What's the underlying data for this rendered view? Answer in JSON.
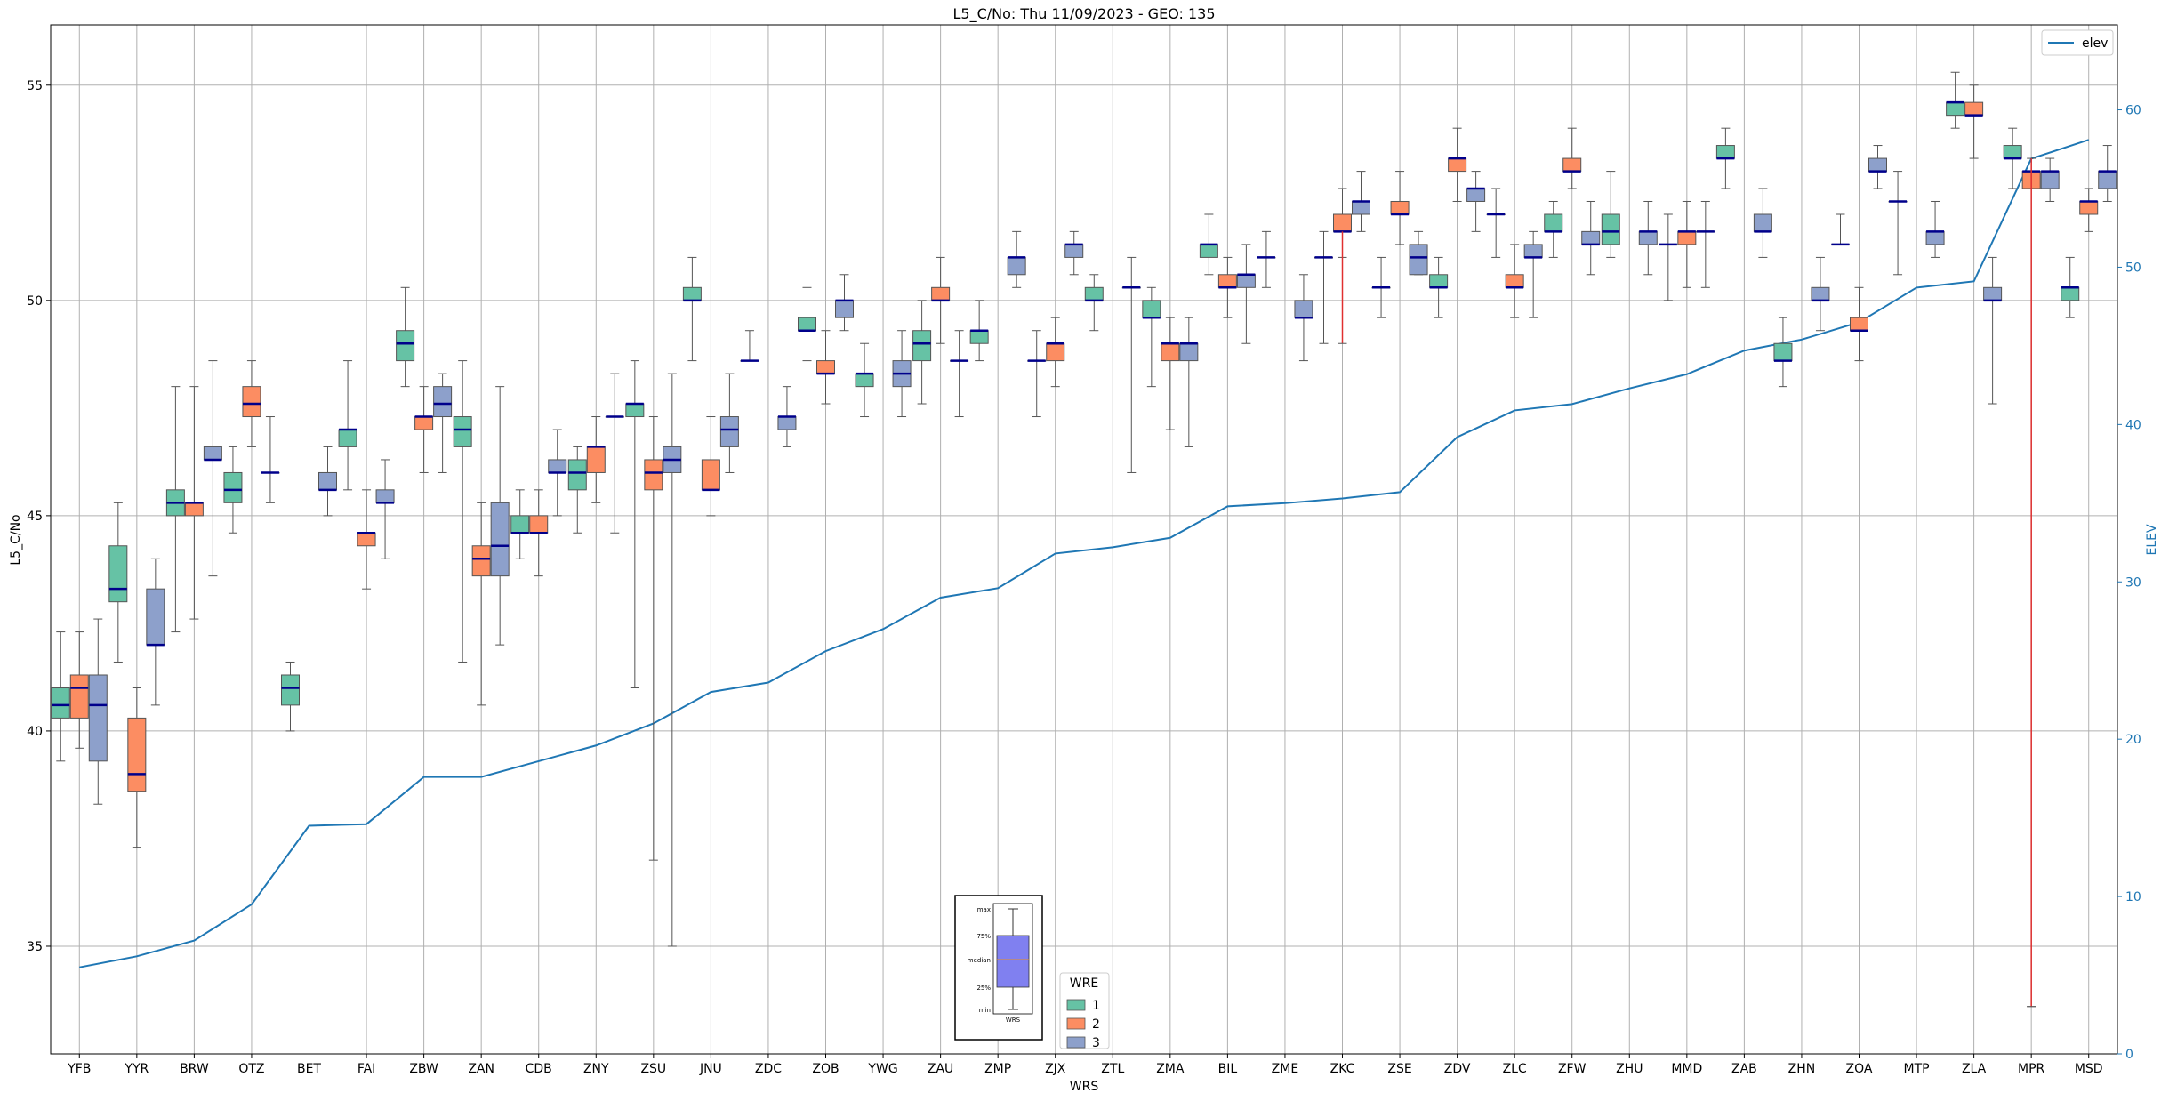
{
  "chart_data": {
    "type": "box",
    "title": "L5_C/No: Thu 11/09/2023 - GEO: 135",
    "xlabel": "WRS",
    "ylabel": "L5_C/No",
    "y2label": "ELEV",
    "ylim": [
      32.5,
      56.4
    ],
    "y2lim": [
      0,
      65.4
    ],
    "yticks": [
      35,
      40,
      45,
      50,
      55
    ],
    "y2ticks": [
      0,
      10,
      20,
      30,
      40,
      50,
      60
    ],
    "grid": true,
    "categories": [
      "YFB",
      "YYR",
      "BRW",
      "OTZ",
      "BET",
      "FAI",
      "ZBW",
      "ZAN",
      "CDB",
      "ZNY",
      "ZSU",
      "JNU",
      "ZDC",
      "ZOB",
      "YWG",
      "ZAU",
      "ZMP",
      "ZJX",
      "ZTL",
      "ZMA",
      "BIL",
      "ZME",
      "ZKC",
      "ZSE",
      "ZDV",
      "ZLC",
      "ZFW",
      "ZHU",
      "MMD",
      "ZAB",
      "ZHN",
      "ZOA",
      "MTP",
      "ZLA",
      "MPR",
      "MSD"
    ],
    "box_series": [
      {
        "name": "1",
        "color": "#66c2a5",
        "boxes": [
          [
            39.3,
            40.3,
            40.6,
            41.0,
            42.3
          ],
          [
            41.6,
            43.0,
            43.3,
            44.3,
            45.3
          ],
          [
            42.3,
            45.0,
            45.3,
            45.6,
            48.0
          ],
          [
            44.6,
            45.3,
            45.6,
            46.0,
            46.6
          ],
          [
            40.0,
            40.6,
            41.0,
            41.3,
            41.6
          ],
          [
            45.6,
            46.6,
            47.0,
            47.0,
            48.6
          ],
          [
            48.0,
            48.6,
            49.0,
            49.3,
            50.3
          ],
          [
            41.6,
            46.6,
            47.0,
            47.3,
            48.6
          ],
          [
            44.0,
            44.6,
            44.6,
            45.0,
            45.6
          ],
          [
            44.6,
            45.6,
            46.0,
            46.3,
            46.6
          ],
          [
            41.0,
            47.3,
            47.6,
            47.6,
            48.6
          ],
          [
            48.6,
            50.0,
            50.0,
            50.3,
            51.0
          ],
          [
            48.6,
            48.6,
            48.6,
            48.6,
            49.3
          ],
          [
            48.6,
            49.3,
            49.3,
            49.6,
            50.3
          ],
          [
            47.3,
            48.0,
            48.3,
            48.3,
            49.0
          ],
          [
            47.6,
            48.6,
            49.0,
            49.3,
            50.0
          ],
          [
            48.6,
            49.0,
            49.3,
            49.3,
            50.0
          ],
          [
            47.3,
            48.6,
            48.6,
            48.6,
            49.3
          ],
          [
            49.3,
            50.0,
            50.0,
            50.3,
            50.6
          ],
          [
            48.0,
            49.6,
            49.6,
            50.0,
            50.3
          ],
          [
            50.6,
            51.0,
            51.3,
            51.3,
            52.0
          ],
          [
            50.3,
            51.0,
            51.0,
            51.0,
            51.6
          ],
          [
            49.0,
            51.0,
            51.0,
            51.0,
            51.6
          ],
          [
            49.6,
            50.3,
            50.3,
            50.3,
            51.0
          ],
          [
            49.6,
            50.3,
            50.3,
            50.6,
            51.0
          ],
          [
            51.0,
            52.0,
            52.0,
            52.0,
            52.6
          ],
          [
            51.0,
            51.6,
            51.6,
            52.0,
            52.3
          ],
          [
            51.0,
            51.3,
            51.6,
            52.0,
            53.0
          ],
          [
            50.0,
            51.3,
            51.3,
            51.3,
            52.0
          ],
          [
            52.6,
            53.3,
            53.3,
            53.6,
            54.0
          ],
          [
            48.0,
            48.6,
            48.6,
            49.0,
            49.6
          ],
          [
            51.3,
            51.3,
            51.3,
            51.3,
            52.0
          ],
          [
            50.6,
            52.3,
            52.3,
            52.3,
            53.0
          ],
          [
            54.0,
            54.3,
            54.6,
            54.6,
            55.3
          ],
          [
            52.6,
            53.3,
            53.3,
            53.6,
            54.0
          ],
          [
            49.6,
            50.0,
            50.3,
            50.3,
            51.0
          ]
        ]
      },
      {
        "name": "2",
        "color": "#fc8d62",
        "boxes": [
          [
            39.6,
            40.3,
            41.0,
            41.3,
            42.3
          ],
          [
            37.3,
            38.6,
            39.0,
            40.3,
            41.0
          ],
          [
            42.6,
            45.0,
            45.3,
            45.3,
            48.0
          ],
          [
            46.6,
            47.3,
            47.6,
            48.0,
            48.6
          ],
          null,
          [
            43.3,
            44.3,
            44.6,
            44.6,
            45.6
          ],
          [
            46.0,
            47.0,
            47.3,
            47.3,
            48.0
          ],
          [
            40.6,
            43.6,
            44.0,
            44.3,
            45.3
          ],
          [
            43.6,
            44.6,
            44.6,
            45.0,
            45.6
          ],
          [
            45.3,
            46.0,
            46.6,
            46.6,
            47.3
          ],
          [
            37.0,
            45.6,
            46.0,
            46.3,
            47.3
          ],
          [
            45.0,
            45.6,
            45.6,
            46.3,
            47.3
          ],
          null,
          [
            47.6,
            48.3,
            48.3,
            48.6,
            49.3
          ],
          null,
          [
            49.0,
            50.0,
            50.0,
            50.3,
            51.0
          ],
          null,
          [
            48.0,
            48.6,
            49.0,
            49.0,
            49.6
          ],
          null,
          [
            47.0,
            48.6,
            49.0,
            49.0,
            49.6
          ],
          [
            49.6,
            50.3,
            50.3,
            50.6,
            51.0
          ],
          null,
          [
            51.0,
            51.6,
            51.6,
            52.0,
            52.6
          ],
          [
            51.3,
            52.0,
            52.0,
            52.3,
            53.0
          ],
          [
            52.3,
            53.0,
            53.3,
            53.3,
            54.0
          ],
          [
            49.6,
            50.3,
            50.3,
            50.6,
            51.3
          ],
          [
            52.6,
            53.0,
            53.0,
            53.3,
            54.0
          ],
          null,
          [
            50.3,
            51.3,
            51.6,
            51.6,
            52.3
          ],
          null,
          null,
          [
            48.6,
            49.3,
            49.3,
            49.6,
            50.3
          ],
          null,
          [
            53.3,
            54.3,
            54.3,
            54.6,
            55.0
          ],
          [
            33.6,
            52.6,
            53.0,
            53.0,
            53.3
          ],
          [
            51.6,
            52.0,
            52.3,
            52.3,
            52.6
          ]
        ]
      },
      {
        "name": "3",
        "color": "#8da0cb",
        "boxes": [
          [
            38.3,
            39.3,
            40.6,
            41.3,
            42.6
          ],
          [
            40.6,
            42.0,
            42.0,
            43.3,
            44.0
          ],
          [
            43.6,
            46.3,
            46.3,
            46.6,
            48.6
          ],
          [
            45.3,
            46.0,
            46.0,
            46.0,
            47.3
          ],
          [
            45.0,
            45.6,
            45.6,
            46.0,
            46.6
          ],
          [
            44.0,
            45.3,
            45.3,
            45.6,
            46.3
          ],
          [
            46.0,
            47.3,
            47.6,
            48.0,
            48.3
          ],
          [
            42.0,
            43.6,
            44.3,
            45.3,
            48.0
          ],
          [
            45.0,
            46.0,
            46.0,
            46.3,
            47.0
          ],
          [
            44.6,
            47.3,
            47.3,
            47.3,
            48.3
          ],
          [
            35.0,
            46.0,
            46.3,
            46.6,
            48.3
          ],
          [
            46.0,
            46.6,
            47.0,
            47.3,
            48.3
          ],
          [
            46.6,
            47.0,
            47.3,
            47.3,
            48.0
          ],
          [
            49.3,
            49.6,
            50.0,
            50.0,
            50.6
          ],
          [
            47.3,
            48.0,
            48.3,
            48.6,
            49.3
          ],
          [
            47.3,
            48.6,
            48.6,
            48.6,
            49.3
          ],
          [
            50.3,
            50.6,
            51.0,
            51.0,
            51.6
          ],
          [
            50.6,
            51.0,
            51.3,
            51.3,
            51.6
          ],
          [
            46.0,
            50.3,
            50.3,
            50.3,
            51.0
          ],
          [
            46.6,
            48.6,
            49.0,
            49.0,
            49.6
          ],
          [
            49.0,
            50.3,
            50.6,
            50.6,
            51.3
          ],
          [
            48.6,
            49.6,
            49.6,
            50.0,
            50.6
          ],
          [
            51.6,
            52.0,
            52.3,
            52.3,
            53.0
          ],
          [
            50.6,
            50.6,
            51.0,
            51.3,
            51.6
          ],
          [
            51.6,
            52.3,
            52.6,
            52.6,
            53.0
          ],
          [
            49.6,
            51.0,
            51.0,
            51.3,
            51.6
          ],
          [
            50.6,
            51.3,
            51.3,
            51.6,
            52.3
          ],
          [
            50.6,
            51.3,
            51.6,
            51.6,
            52.3
          ],
          [
            50.3,
            51.6,
            51.6,
            51.6,
            52.3
          ],
          [
            51.0,
            51.6,
            51.6,
            52.0,
            52.6
          ],
          [
            49.3,
            50.0,
            50.0,
            50.3,
            51.0
          ],
          [
            52.6,
            53.0,
            53.0,
            53.3,
            53.6
          ],
          [
            51.0,
            51.3,
            51.6,
            51.6,
            52.3
          ],
          [
            47.6,
            50.0,
            50.0,
            50.3,
            51.0
          ],
          [
            52.3,
            52.6,
            53.0,
            53.0,
            53.3
          ],
          [
            52.3,
            52.6,
            53.0,
            53.0,
            53.6
          ]
        ]
      }
    ],
    "red_whiskers": [
      {
        "category": "ZKC",
        "low": 49.0,
        "high": 51.6
      },
      {
        "category": "MPR",
        "low": 33.6,
        "high": 53.3
      }
    ],
    "line_series": {
      "name": "elev",
      "color": "#1f77b4",
      "values": [
        5.5,
        6.2,
        7.2,
        9.5,
        14.5,
        14.6,
        17.6,
        17.6,
        18.6,
        19.6,
        21.0,
        23.0,
        23.6,
        25.6,
        27.0,
        29.0,
        29.6,
        31.8,
        32.2,
        32.8,
        34.8,
        35.0,
        35.3,
        35.7,
        39.2,
        40.9,
        41.3,
        42.3,
        43.2,
        44.7,
        45.4,
        46.5,
        48.7,
        49.1,
        56.9,
        58.1
      ]
    },
    "legend_line": {
      "label": "elev",
      "position": "upper right"
    },
    "legend_boxes": {
      "title": "WRE",
      "labels": [
        "1",
        "2",
        "3"
      ],
      "position": "lower center"
    },
    "inset": {
      "labels": [
        "max",
        "75%",
        "median",
        "25%",
        "min"
      ],
      "xtick": "WRS",
      "color": "#8080f0"
    }
  }
}
